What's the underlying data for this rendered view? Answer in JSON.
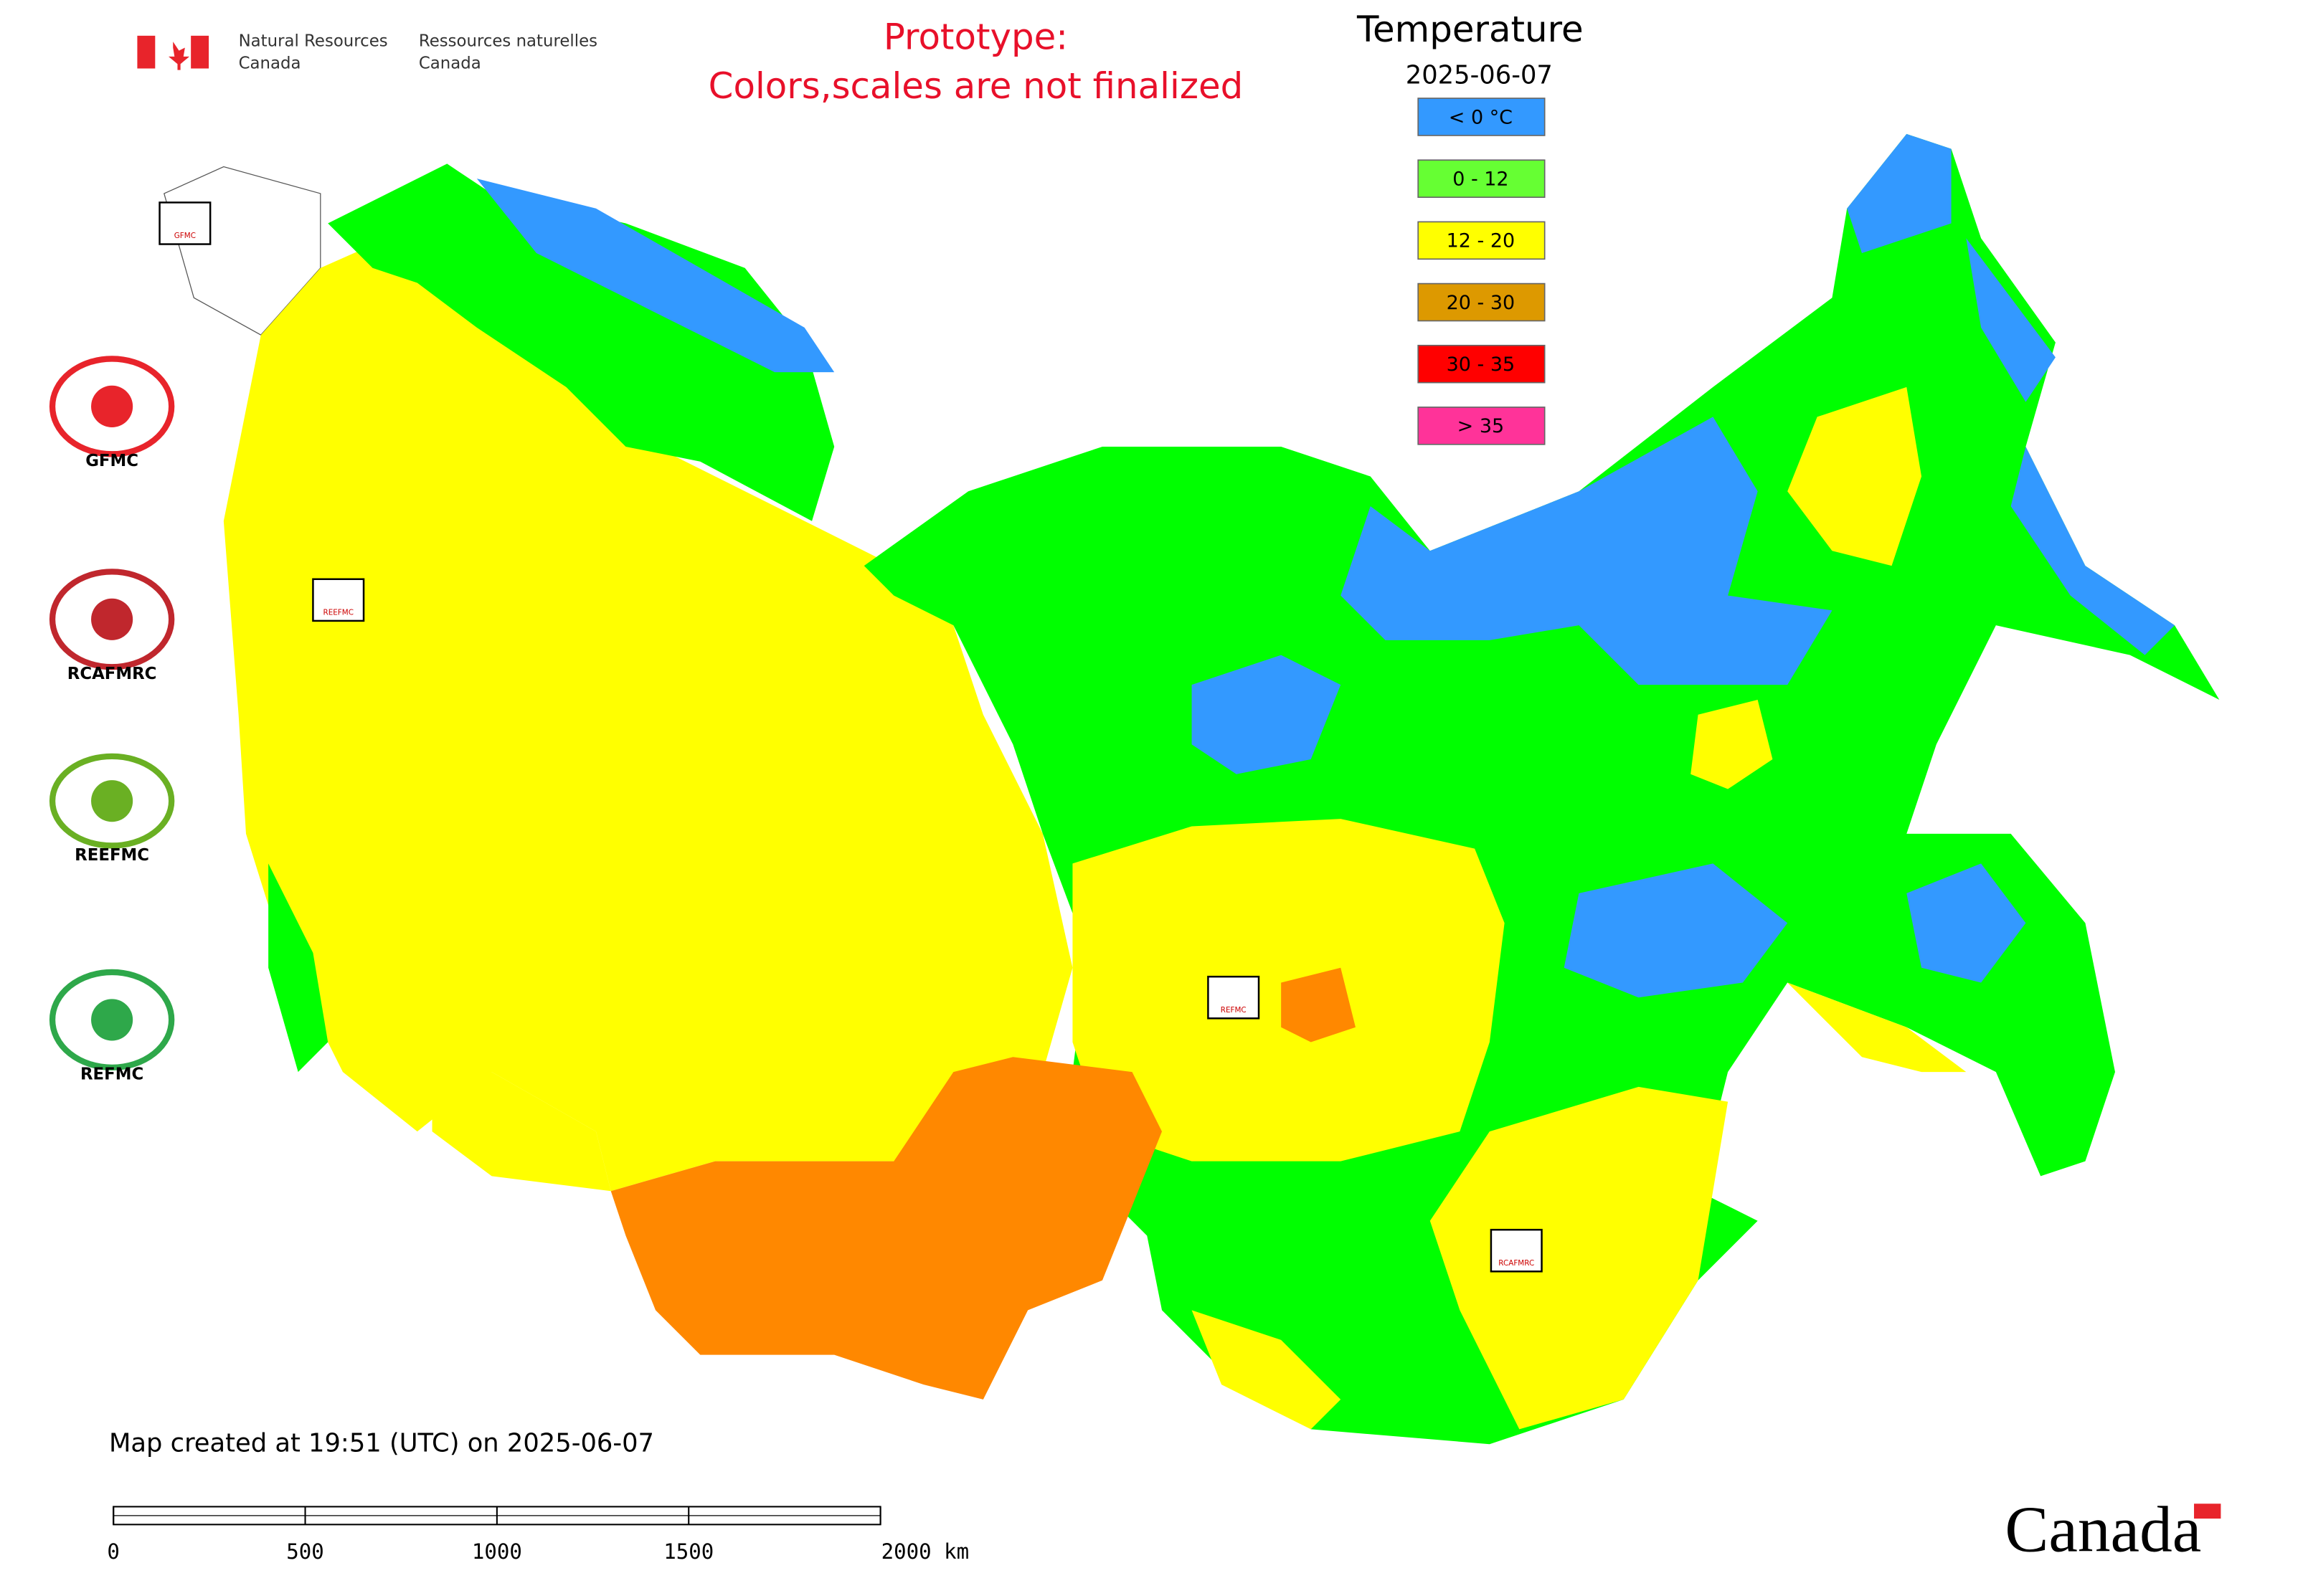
{
  "header": {
    "agency_en": [
      "Natural Resources",
      "Canada"
    ],
    "agency_fr": [
      "Ressources naturelles",
      "Canada"
    ]
  },
  "notice": [
    "Prototype:",
    "Colors,scales are not finalized"
  ],
  "legend": {
    "title": "Temperature",
    "date": "2025-06-07",
    "items": [
      {
        "label": "< 0 °C",
        "color": "#3399ff"
      },
      {
        "label": "0 - 12",
        "color": "#66ff33"
      },
      {
        "label": "12 - 20",
        "color": "#ffff00"
      },
      {
        "label": "20 - 30",
        "color": "#dd9900"
      },
      {
        "label": "30 - 35",
        "color": "#ff0000"
      },
      {
        "label": "> 35",
        "color": "#ff3399"
      }
    ]
  },
  "logos": [
    {
      "label": "GFMC"
    },
    {
      "label": "RCAFMRC"
    },
    {
      "label": "REEFMC"
    },
    {
      "label": "REFMC"
    }
  ],
  "markers": [
    {
      "label": "GFMC"
    },
    {
      "label": "REEFMC"
    },
    {
      "label": "REFMC"
    },
    {
      "label": "RCAFMRC"
    }
  ],
  "footer": {
    "created": "Map created at 19:51 (UTC) on 2025-06-07",
    "scale": [
      "0",
      "500",
      "1000",
      "1500",
      "2000 km"
    ],
    "wordmark": "Canada"
  }
}
